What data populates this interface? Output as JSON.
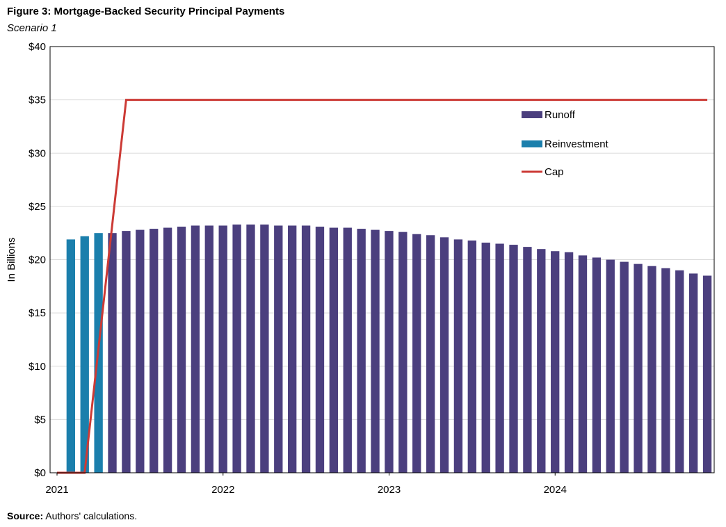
{
  "header": {
    "title": "Figure 3: Mortgage-Backed Security Principal Payments",
    "subtitle": "Scenario 1"
  },
  "footer": {
    "source_label": "Source:",
    "source_text": "Authors' calculations."
  },
  "chart_data": {
    "type": "bar",
    "title": "Figure 3: Mortgage-Backed Security Principal Payments",
    "subtitle": "Scenario 1",
    "xlabel": "",
    "ylabel": "In Billions",
    "ylim": [
      0,
      40
    ],
    "yticks": [
      0,
      5,
      10,
      15,
      20,
      25,
      30,
      35,
      40
    ],
    "ytick_labels": [
      "$0",
      "$5",
      "$10",
      "$15",
      "$20",
      "$25",
      "$30",
      "$35",
      "$40"
    ],
    "x_range": [
      "2021-01",
      "2024-12"
    ],
    "xtick_labels": [
      "2021",
      "2022",
      "2023",
      "2024"
    ],
    "grid": true,
    "legend_position": "top-right",
    "colors": {
      "runoff": "#4b3f7e",
      "reinvestment": "#1b7fac",
      "cap": "#cc3a35"
    },
    "categories": [
      "2021-02",
      "2021-03",
      "2021-04",
      "2021-05",
      "2021-06",
      "2021-07",
      "2021-08",
      "2021-09",
      "2021-10",
      "2021-11",
      "2021-12",
      "2022-01",
      "2022-02",
      "2022-03",
      "2022-04",
      "2022-05",
      "2022-06",
      "2022-07",
      "2022-08",
      "2022-09",
      "2022-10",
      "2022-11",
      "2022-12",
      "2023-01",
      "2023-02",
      "2023-03",
      "2023-04",
      "2023-05",
      "2023-06",
      "2023-07",
      "2023-08",
      "2023-09",
      "2023-10",
      "2023-11",
      "2023-12",
      "2024-01",
      "2024-02",
      "2024-03",
      "2024-04",
      "2024-05",
      "2024-06",
      "2024-07",
      "2024-08",
      "2024-09",
      "2024-10",
      "2024-11",
      "2024-12"
    ],
    "series": [
      {
        "name": "Runoff",
        "kind": "bar",
        "values": [
          0,
          0,
          0,
          22.5,
          22.7,
          22.8,
          22.9,
          23.0,
          23.1,
          23.2,
          23.2,
          23.2,
          23.3,
          23.3,
          23.3,
          23.2,
          23.2,
          23.2,
          23.1,
          23.0,
          23.0,
          22.9,
          22.8,
          22.7,
          22.6,
          22.4,
          22.3,
          22.1,
          21.9,
          21.8,
          21.6,
          21.5,
          21.4,
          21.2,
          21.0,
          20.8,
          20.7,
          20.4,
          20.2,
          20.0,
          19.8,
          19.6,
          19.4,
          19.2,
          19.0,
          18.7,
          18.5
        ]
      },
      {
        "name": "Reinvestment",
        "kind": "bar",
        "values": [
          21.9,
          22.2,
          22.5,
          0,
          0,
          0,
          0,
          0,
          0,
          0,
          0,
          0,
          0,
          0,
          0,
          0,
          0,
          0,
          0,
          0,
          0,
          0,
          0,
          0,
          0,
          0,
          0,
          0,
          0,
          0,
          0,
          0,
          0,
          0,
          0,
          0,
          0,
          0,
          0,
          0,
          0,
          0,
          0,
          0,
          0,
          0,
          0
        ]
      },
      {
        "name": "Cap",
        "kind": "line",
        "points": [
          {
            "x": "2021-01",
            "y": 0
          },
          {
            "x": "2021-03",
            "y": 0
          },
          {
            "x": "2021-06",
            "y": 35
          },
          {
            "x": "2024-12",
            "y": 35
          }
        ]
      }
    ]
  }
}
